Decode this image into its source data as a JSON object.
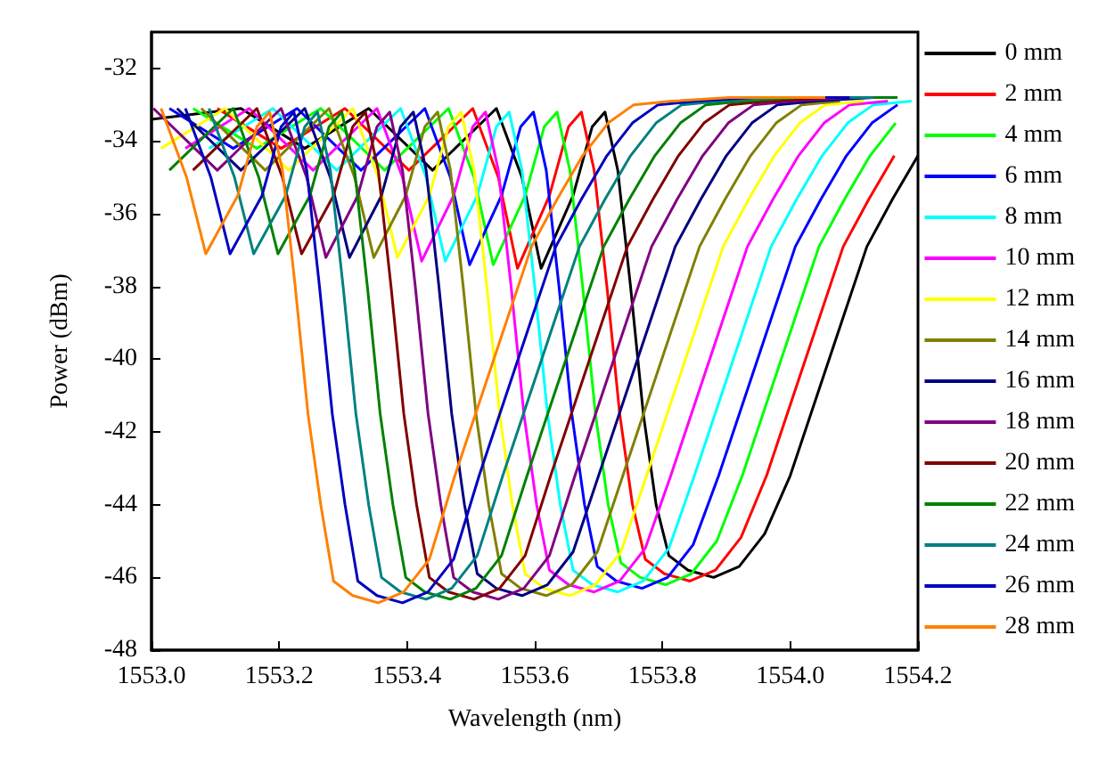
{
  "chart_data": {
    "type": "line",
    "xlabel": "Wavelength (nm)",
    "ylabel": "Power (dBm)",
    "xlim": [
      1553.0,
      1554.2
    ],
    "ylim": [
      -48,
      -31
    ],
    "xticks": [
      {
        "value": 1553.0,
        "label": "1553.0"
      },
      1553.2,
      1553.4,
      1553.6,
      1553.8,
      {
        "value": 1554.0,
        "label": "1554.0"
      },
      1554.2
    ],
    "yticks": [
      -48,
      -46,
      -44,
      -42,
      -40,
      -38,
      -36,
      -34,
      -32
    ],
    "grid": false,
    "legend": "right",
    "marker": "none",
    "line_style": "solid",
    "series": [
      {
        "name": "0 mm",
        "color": "#000000",
        "x": [
          1553.0,
          1553.14,
          1553.24,
          1553.34,
          1553.44,
          1553.54,
          1553.58,
          1553.61,
          1553.66,
          1553.69,
          1553.71,
          1553.73,
          1553.75,
          1553.77,
          1553.79,
          1553.81,
          1553.84,
          1553.88,
          1553.92,
          1553.96,
          1554.0,
          1554.04,
          1554.08,
          1554.12,
          1554.16,
          1554.2
        ],
        "values": [
          -33.4,
          -33.1,
          -34.2,
          -33.1,
          -34.8,
          -33.1,
          -35.0,
          -37.5,
          -35.5,
          -33.6,
          -33.2,
          -34.8,
          -38.0,
          -41.5,
          -44.0,
          -45.4,
          -45.8,
          -46.0,
          -45.7,
          -44.8,
          -43.2,
          -41.1,
          -39.0,
          -36.9,
          -35.6,
          -34.4
        ]
      },
      {
        "name": "2 mm",
        "color": "#ff0000",
        "x": [
          1553.103,
          1553.203,
          1553.303,
          1553.403,
          1553.503,
          1553.543,
          1553.573,
          1553.623,
          1553.653,
          1553.673,
          1553.693,
          1553.713,
          1553.733,
          1553.753,
          1553.773,
          1553.803,
          1553.843,
          1553.883,
          1553.923,
          1553.963,
          1554.003,
          1554.043,
          1554.083,
          1554.123,
          1554.163
        ],
        "values": [
          -33.1,
          -34.2,
          -33.1,
          -34.8,
          -33.1,
          -35.0,
          -37.5,
          -35.5,
          -33.6,
          -33.2,
          -34.8,
          -38.0,
          -41.5,
          -44.0,
          -45.5,
          -45.9,
          -46.1,
          -45.8,
          -44.9,
          -43.2,
          -41.1,
          -39.0,
          -36.9,
          -35.6,
          -34.4
        ]
      },
      {
        "name": "4 mm",
        "color": "#00ff00",
        "x": [
          1553.065,
          1553.165,
          1553.265,
          1553.365,
          1553.465,
          1553.505,
          1553.535,
          1553.585,
          1553.615,
          1553.635,
          1553.655,
          1553.675,
          1553.695,
          1553.715,
          1553.735,
          1553.765,
          1553.805,
          1553.845,
          1553.885,
          1553.925,
          1553.965,
          1554.005,
          1554.045,
          1554.085,
          1554.125,
          1554.165
        ],
        "values": [
          -33.1,
          -34.2,
          -33.1,
          -34.8,
          -33.1,
          -35.0,
          -37.4,
          -35.5,
          -33.6,
          -33.2,
          -34.8,
          -38.0,
          -41.5,
          -44.0,
          -45.6,
          -46.0,
          -46.2,
          -45.9,
          -45.0,
          -43.2,
          -41.1,
          -39.0,
          -36.9,
          -35.6,
          -34.4,
          -33.5
        ]
      },
      {
        "name": "6 mm",
        "color": "#0000ff",
        "x": [
          1553.028,
          1553.128,
          1553.228,
          1553.328,
          1553.428,
          1553.468,
          1553.498,
          1553.548,
          1553.578,
          1553.598,
          1553.618,
          1553.638,
          1553.658,
          1553.678,
          1553.698,
          1553.728,
          1553.768,
          1553.808,
          1553.848,
          1553.888,
          1553.928,
          1553.968,
          1554.008,
          1554.048,
          1554.088,
          1554.128,
          1554.168
        ],
        "values": [
          -33.1,
          -34.2,
          -33.1,
          -34.8,
          -33.1,
          -35.0,
          -37.4,
          -35.5,
          -33.6,
          -33.2,
          -34.8,
          -38.0,
          -41.5,
          -44.0,
          -45.7,
          -46.1,
          -46.3,
          -46.0,
          -45.1,
          -43.2,
          -41.1,
          -39.0,
          -36.9,
          -35.6,
          -34.4,
          -33.5,
          -33.0
        ]
      },
      {
        "name": "8 mm",
        "color": "#00ffff",
        "x": [
          1553.09,
          1553.19,
          1553.29,
          1553.39,
          1553.43,
          1553.46,
          1553.51,
          1553.54,
          1553.56,
          1553.58,
          1553.6,
          1553.62,
          1553.64,
          1553.66,
          1553.69,
          1553.73,
          1553.77,
          1553.81,
          1553.85,
          1553.89,
          1553.93,
          1553.97,
          1554.01,
          1554.05,
          1554.09,
          1554.13,
          1554.19
        ],
        "values": [
          -34.2,
          -33.1,
          -34.8,
          -33.1,
          -35.0,
          -37.3,
          -35.5,
          -33.6,
          -33.2,
          -34.8,
          -38.0,
          -41.5,
          -44.0,
          -45.8,
          -46.2,
          -46.4,
          -46.1,
          -45.2,
          -43.2,
          -41.1,
          -39.0,
          -36.9,
          -35.6,
          -34.4,
          -33.5,
          -33.0,
          -32.9
        ]
      },
      {
        "name": "10 mm",
        "color": "#ff00ff",
        "x": [
          1553.053,
          1553.153,
          1553.253,
          1553.353,
          1553.393,
          1553.423,
          1553.473,
          1553.503,
          1553.523,
          1553.543,
          1553.563,
          1553.583,
          1553.603,
          1553.623,
          1553.653,
          1553.693,
          1553.733,
          1553.773,
          1553.813,
          1553.853,
          1553.893,
          1553.933,
          1553.973,
          1554.013,
          1554.053,
          1554.093,
          1554.153
        ],
        "values": [
          -34.2,
          -33.1,
          -34.8,
          -33.1,
          -35.0,
          -37.3,
          -35.5,
          -33.6,
          -33.2,
          -34.8,
          -38.0,
          -41.5,
          -44.0,
          -45.8,
          -46.2,
          -46.4,
          -46.1,
          -45.2,
          -43.2,
          -41.1,
          -39.0,
          -36.9,
          -35.6,
          -34.4,
          -33.5,
          -33.0,
          -32.9
        ]
      },
      {
        "name": "12 mm",
        "color": "#ffff00",
        "x": [
          1553.015,
          1553.115,
          1553.215,
          1553.315,
          1553.355,
          1553.385,
          1553.435,
          1553.465,
          1553.485,
          1553.505,
          1553.525,
          1553.545,
          1553.565,
          1553.585,
          1553.615,
          1553.655,
          1553.695,
          1553.735,
          1553.775,
          1553.815,
          1553.855,
          1553.895,
          1553.935,
          1553.975,
          1554.015,
          1554.055,
          1554.115
        ],
        "values": [
          -34.2,
          -33.1,
          -34.8,
          -33.1,
          -35.0,
          -37.2,
          -35.5,
          -33.6,
          -33.2,
          -34.8,
          -38.0,
          -41.5,
          -44.0,
          -45.9,
          -46.3,
          -46.5,
          -46.2,
          -45.3,
          -43.2,
          -41.1,
          -39.0,
          -36.9,
          -35.6,
          -34.4,
          -33.5,
          -33.0,
          -32.9
        ]
      },
      {
        "name": "14 mm",
        "color": "#808000",
        "x": [
          1553.078,
          1553.178,
          1553.278,
          1553.318,
          1553.348,
          1553.398,
          1553.428,
          1553.448,
          1553.468,
          1553.488,
          1553.508,
          1553.528,
          1553.548,
          1553.578,
          1553.618,
          1553.658,
          1553.698,
          1553.738,
          1553.778,
          1553.818,
          1553.858,
          1553.898,
          1553.938,
          1553.978,
          1554.018,
          1554.078
        ],
        "values": [
          -33.1,
          -34.8,
          -33.1,
          -35.0,
          -37.2,
          -35.5,
          -33.6,
          -33.2,
          -34.8,
          -38.0,
          -41.5,
          -44.0,
          -45.9,
          -46.3,
          -46.5,
          -46.2,
          -45.3,
          -43.2,
          -41.1,
          -39.0,
          -36.9,
          -35.6,
          -34.4,
          -33.5,
          -33.0,
          -32.9
        ]
      },
      {
        "name": "16 mm",
        "color": "#000080",
        "x": [
          1553.04,
          1553.14,
          1553.24,
          1553.28,
          1553.31,
          1553.36,
          1553.39,
          1553.41,
          1553.43,
          1553.45,
          1553.47,
          1553.49,
          1553.51,
          1553.54,
          1553.58,
          1553.62,
          1553.66,
          1553.7,
          1553.74,
          1553.78,
          1553.82,
          1553.86,
          1553.9,
          1553.94,
          1553.98,
          1554.04,
          1554.13
        ],
        "values": [
          -33.1,
          -34.8,
          -33.1,
          -35.0,
          -37.2,
          -35.5,
          -33.6,
          -33.2,
          -34.8,
          -38.0,
          -41.5,
          -44.0,
          -45.9,
          -46.3,
          -46.5,
          -46.2,
          -45.3,
          -43.2,
          -41.1,
          -39.0,
          -36.9,
          -35.6,
          -34.4,
          -33.5,
          -33.0,
          -32.9,
          -32.8
        ]
      },
      {
        "name": "18 mm",
        "color": "#800080",
        "x": [
          1553.003,
          1553.103,
          1553.203,
          1553.243,
          1553.273,
          1553.323,
          1553.353,
          1553.373,
          1553.393,
          1553.413,
          1553.433,
          1553.453,
          1553.473,
          1553.503,
          1553.543,
          1553.583,
          1553.623,
          1553.663,
          1553.703,
          1553.743,
          1553.783,
          1553.823,
          1553.863,
          1553.903,
          1553.943,
          1554.003,
          1554.093
        ],
        "values": [
          -33.1,
          -34.8,
          -33.1,
          -35.0,
          -37.2,
          -35.5,
          -33.6,
          -33.2,
          -34.8,
          -38.0,
          -41.5,
          -44.0,
          -46.0,
          -46.4,
          -46.6,
          -46.3,
          -45.4,
          -43.2,
          -41.1,
          -39.0,
          -36.9,
          -35.6,
          -34.4,
          -33.5,
          -33.0,
          -32.9,
          -32.8
        ]
      },
      {
        "name": "20 mm",
        "color": "#800000",
        "x": [
          1553.065,
          1553.165,
          1553.205,
          1553.235,
          1553.285,
          1553.315,
          1553.335,
          1553.355,
          1553.375,
          1553.395,
          1553.415,
          1553.435,
          1553.465,
          1553.505,
          1553.545,
          1553.585,
          1553.625,
          1553.665,
          1553.705,
          1553.745,
          1553.785,
          1553.825,
          1553.865,
          1553.905,
          1553.965,
          1554.055
        ],
        "values": [
          -34.8,
          -33.1,
          -35.0,
          -37.1,
          -35.5,
          -33.6,
          -33.2,
          -34.8,
          -38.0,
          -41.5,
          -44.0,
          -46.0,
          -46.4,
          -46.6,
          -46.3,
          -45.4,
          -43.2,
          -41.1,
          -39.0,
          -36.9,
          -35.6,
          -34.4,
          -33.5,
          -33.0,
          -32.9,
          -32.8
        ]
      },
      {
        "name": "22 mm",
        "color": "#008000",
        "x": [
          1553.028,
          1553.128,
          1553.168,
          1553.198,
          1553.248,
          1553.278,
          1553.298,
          1553.318,
          1553.338,
          1553.358,
          1553.378,
          1553.398,
          1553.428,
          1553.468,
          1553.508,
          1553.548,
          1553.588,
          1553.628,
          1553.668,
          1553.708,
          1553.748,
          1553.788,
          1553.828,
          1553.868,
          1553.928,
          1554.018,
          1554.168
        ],
        "values": [
          -34.8,
          -33.1,
          -35.0,
          -37.1,
          -35.5,
          -33.6,
          -33.2,
          -34.8,
          -38.0,
          -41.5,
          -44.0,
          -46.0,
          -46.4,
          -46.6,
          -46.3,
          -45.4,
          -43.2,
          -41.1,
          -39.0,
          -36.9,
          -35.6,
          -34.4,
          -33.5,
          -33.0,
          -32.9,
          -32.8,
          -32.8
        ]
      },
      {
        "name": "24 mm",
        "color": "#008080",
        "x": [
          1553.09,
          1553.13,
          1553.16,
          1553.21,
          1553.24,
          1553.26,
          1553.28,
          1553.3,
          1553.32,
          1553.34,
          1553.36,
          1553.39,
          1553.43,
          1553.47,
          1553.51,
          1553.55,
          1553.59,
          1553.63,
          1553.67,
          1553.71,
          1553.75,
          1553.79,
          1553.83,
          1553.89,
          1553.98,
          1554.13
        ],
        "values": [
          -33.1,
          -35.0,
          -37.1,
          -35.5,
          -33.6,
          -33.2,
          -34.8,
          -38.0,
          -41.5,
          -44.0,
          -46.0,
          -46.4,
          -46.6,
          -46.3,
          -45.4,
          -43.2,
          -41.1,
          -39.0,
          -36.9,
          -35.6,
          -34.4,
          -33.5,
          -33.0,
          -32.9,
          -32.8,
          -32.8
        ]
      },
      {
        "name": "26 mm",
        "color": "#0000c0",
        "x": [
          1553.053,
          1553.093,
          1553.123,
          1553.173,
          1553.203,
          1553.223,
          1553.243,
          1553.263,
          1553.283,
          1553.303,
          1553.323,
          1553.353,
          1553.393,
          1553.433,
          1553.473,
          1553.513,
          1553.553,
          1553.593,
          1553.633,
          1553.673,
          1553.713,
          1553.753,
          1553.793,
          1553.853,
          1553.943,
          1554.093
        ],
        "values": [
          -33.1,
          -35.0,
          -37.1,
          -35.5,
          -33.6,
          -33.2,
          -34.8,
          -38.0,
          -41.5,
          -44.0,
          -46.1,
          -46.5,
          -46.7,
          -46.4,
          -45.5,
          -43.2,
          -41.1,
          -39.0,
          -36.9,
          -35.6,
          -34.4,
          -33.5,
          -33.0,
          -32.9,
          -32.8,
          -32.8
        ]
      },
      {
        "name": "28 mm",
        "color": "#ff8000",
        "x": [
          1553.015,
          1553.055,
          1553.085,
          1553.135,
          1553.165,
          1553.185,
          1553.205,
          1553.225,
          1553.245,
          1553.265,
          1553.285,
          1553.315,
          1553.355,
          1553.395,
          1553.435,
          1553.475,
          1553.515,
          1553.555,
          1553.595,
          1553.635,
          1553.675,
          1553.715,
          1553.755,
          1553.815,
          1553.905,
          1554.055
        ],
        "values": [
          -33.1,
          -35.0,
          -37.1,
          -35.5,
          -33.6,
          -33.2,
          -34.8,
          -38.0,
          -41.5,
          -44.0,
          -46.1,
          -46.5,
          -46.7,
          -46.4,
          -45.5,
          -43.2,
          -41.1,
          -39.0,
          -36.9,
          -35.6,
          -34.4,
          -33.5,
          -33.0,
          -32.9,
          -32.8,
          -32.8
        ]
      }
    ]
  }
}
